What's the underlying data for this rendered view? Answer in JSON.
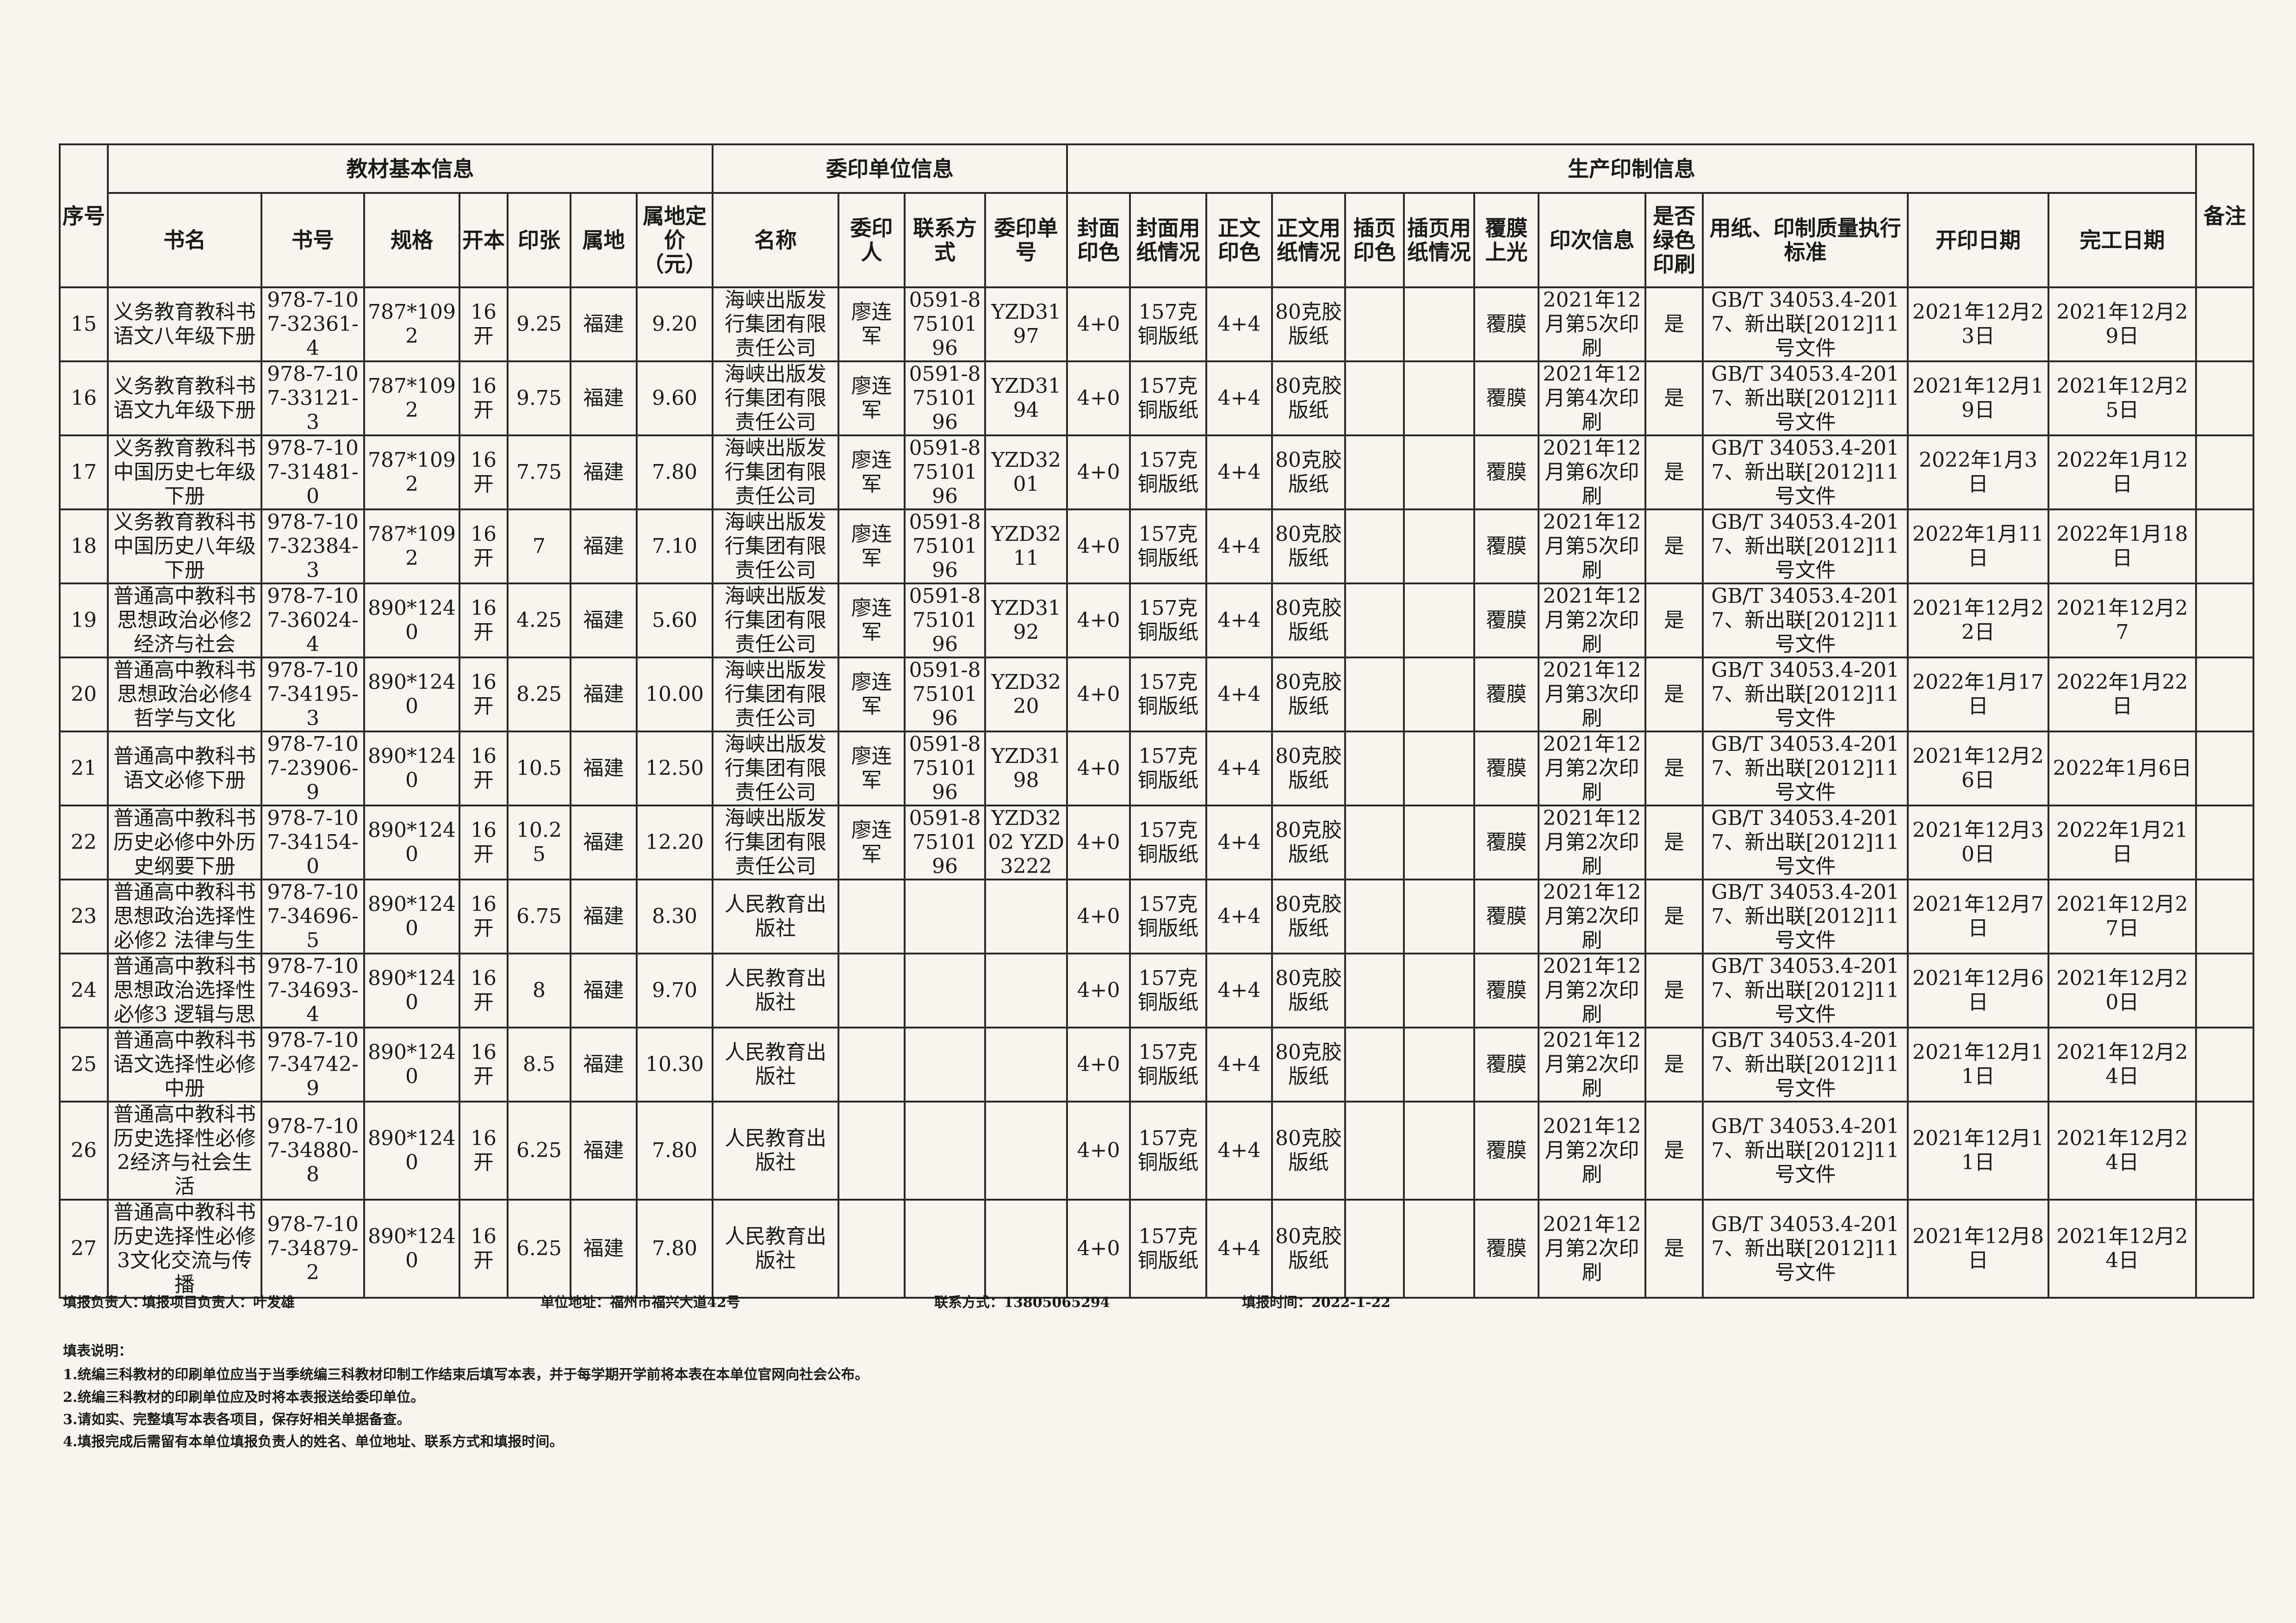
{
  "table": {
    "group_headers": {
      "seq": "序号",
      "basic": "教材基本信息",
      "client": "委印单位信息",
      "production": "生产印制信息",
      "remark": "备注"
    },
    "columns": [
      "书名",
      "书号",
      "规格",
      "开本",
      "印张",
      "属地",
      "属地定价（元）",
      "名称",
      "委印人",
      "联系方式",
      "委印单号",
      "封面印色",
      "封面用纸情况",
      "正文印色",
      "正文用纸情况",
      "插页印色",
      "插页用纸情况",
      "覆膜上光",
      "印次信息",
      "是否绿色印刷",
      "用纸、印制质量执行标准",
      "开印日期",
      "完工日期"
    ],
    "rows": [
      {
        "no": "15",
        "title": "义务教育教科书语文八年级下册",
        "isbn": "978-7-107-32361-4",
        "size": "787*1092",
        "format": "16开",
        "sheets": "9.25",
        "region": "福建",
        "price": "9.20",
        "client": "海峡出版发行集团有限责任公司",
        "contact_person": "廖连军",
        "phone": "0591-87510196",
        "order": "YZD3197",
        "cover_color": "4+0",
        "cover_paper": "157克铜版纸",
        "text_color": "4+4",
        "text_paper": "80克胶版纸",
        "insert_color": "",
        "insert_paper": "",
        "lamination": "覆膜",
        "impression": "2021年12月第5次印刷",
        "green": "是",
        "standard": "GB/T 34053.4-2017、新出联[2012]11号文件",
        "start": "2021年12月23日",
        "end": "2021年12月29日",
        "remark": ""
      },
      {
        "no": "16",
        "title": "义务教育教科书语文九年级下册",
        "isbn": "978-7-107-33121-3",
        "size": "787*1092",
        "format": "16开",
        "sheets": "9.75",
        "region": "福建",
        "price": "9.60",
        "client": "海峡出版发行集团有限责任公司",
        "contact_person": "廖连军",
        "phone": "0591-87510196",
        "order": "YZD3194",
        "cover_color": "4+0",
        "cover_paper": "157克铜版纸",
        "text_color": "4+4",
        "text_paper": "80克胶版纸",
        "insert_color": "",
        "insert_paper": "",
        "lamination": "覆膜",
        "impression": "2021年12月第4次印刷",
        "green": "是",
        "standard": "GB/T 34053.4-2017、新出联[2012]11号文件",
        "start": "2021年12月19日",
        "end": "2021年12月25日",
        "remark": ""
      },
      {
        "no": "17",
        "title": "义务教育教科书中国历史七年级下册",
        "isbn": "978-7-107-31481-0",
        "size": "787*1092",
        "format": "16开",
        "sheets": "7.75",
        "region": "福建",
        "price": "7.80",
        "client": "海峡出版发行集团有限责任公司",
        "contact_person": "廖连军",
        "phone": "0591-87510196",
        "order": "YZD3201",
        "cover_color": "4+0",
        "cover_paper": "157克铜版纸",
        "text_color": "4+4",
        "text_paper": "80克胶版纸",
        "insert_color": "",
        "insert_paper": "",
        "lamination": "覆膜",
        "impression": "2021年12月第6次印刷",
        "green": "是",
        "standard": "GB/T 34053.4-2017、新出联[2012]11号文件",
        "start": "2022年1月3日",
        "end": "2022年1月12日",
        "remark": ""
      },
      {
        "no": "18",
        "title": "义务教育教科书中国历史八年级下册",
        "isbn": "978-7-107-32384-3",
        "size": "787*1092",
        "format": "16开",
        "sheets": "7",
        "region": "福建",
        "price": "7.10",
        "client": "海峡出版发行集团有限责任公司",
        "contact_person": "廖连军",
        "phone": "0591-87510196",
        "order": "YZD3211",
        "cover_color": "4+0",
        "cover_paper": "157克铜版纸",
        "text_color": "4+4",
        "text_paper": "80克胶版纸",
        "insert_color": "",
        "insert_paper": "",
        "lamination": "覆膜",
        "impression": "2021年12月第5次印刷",
        "green": "是",
        "standard": "GB/T 34053.4-2017、新出联[2012]11号文件",
        "start": "2022年1月11日",
        "end": "2022年1月18日",
        "remark": ""
      },
      {
        "no": "19",
        "title": "普通高中教科书思想政治必修2经济与社会",
        "isbn": "978-7-107-36024-4",
        "size": "890*1240",
        "format": "16开",
        "sheets": "4.25",
        "region": "福建",
        "price": "5.60",
        "client": "海峡出版发行集团有限责任公司",
        "contact_person": "廖连军",
        "phone": "0591-87510196",
        "order": "YZD3192",
        "cover_color": "4+0",
        "cover_paper": "157克铜版纸",
        "text_color": "4+4",
        "text_paper": "80克胶版纸",
        "insert_color": "",
        "insert_paper": "",
        "lamination": "覆膜",
        "impression": "2021年12月第2次印刷",
        "green": "是",
        "standard": "GB/T 34053.4-2017、新出联[2012]11号文件",
        "start": "2021年12月22日",
        "end": "2021年12月27",
        "remark": ""
      },
      {
        "no": "20",
        "title": "普通高中教科书思想政治必修4哲学与文化",
        "isbn": "978-7-107-34195-3",
        "size": "890*1240",
        "format": "16开",
        "sheets": "8.25",
        "region": "福建",
        "price": "10.00",
        "client": "海峡出版发行集团有限责任公司",
        "contact_person": "廖连军",
        "phone": "0591-87510196",
        "order": "YZD3220",
        "cover_color": "4+0",
        "cover_paper": "157克铜版纸",
        "text_color": "4+4",
        "text_paper": "80克胶版纸",
        "insert_color": "",
        "insert_paper": "",
        "lamination": "覆膜",
        "impression": "2021年12月第3次印刷",
        "green": "是",
        "standard": "GB/T 34053.4-2017、新出联[2012]11号文件",
        "start": "2022年1月17日",
        "end": "2022年1月22日",
        "remark": ""
      },
      {
        "no": "21",
        "title": "普通高中教科书语文必修下册",
        "isbn": "978-7-107-23906-9",
        "size": "890*1240",
        "format": "16开",
        "sheets": "10.5",
        "region": "福建",
        "price": "12.50",
        "client": "海峡出版发行集团有限责任公司",
        "contact_person": "廖连军",
        "phone": "0591-87510196",
        "order": "YZD3198",
        "cover_color": "4+0",
        "cover_paper": "157克铜版纸",
        "text_color": "4+4",
        "text_paper": "80克胶版纸",
        "insert_color": "",
        "insert_paper": "",
        "lamination": "覆膜",
        "impression": "2021年12月第2次印刷",
        "green": "是",
        "standard": "GB/T 34053.4-2017、新出联[2012]11号文件",
        "start": "2021年12月26日",
        "end": "2022年1月6日",
        "remark": ""
      },
      {
        "no": "22",
        "title": "普通高中教科书历史必修中外历史纲要下册",
        "isbn": "978-7-107-34154-0",
        "size": "890*1240",
        "format": "16开",
        "sheets": "10.25",
        "region": "福建",
        "price": "12.20",
        "client": "海峡出版发行集团有限责任公司",
        "contact_person": "廖连军",
        "phone": "0591-87510196",
        "order": "YZD3202 YZD3222",
        "cover_color": "4+0",
        "cover_paper": "157克铜版纸",
        "text_color": "4+4",
        "text_paper": "80克胶版纸",
        "insert_color": "",
        "insert_paper": "",
        "lamination": "覆膜",
        "impression": "2021年12月第2次印刷",
        "green": "是",
        "standard": "GB/T 34053.4-2017、新出联[2012]11号文件",
        "start": "2021年12月30日",
        "end": "2022年1月21日",
        "remark": ""
      },
      {
        "no": "23",
        "title": "普通高中教科书思想政治选择性必修2 法律与生",
        "isbn": "978-7-107-34696-5",
        "size": "890*1240",
        "format": "16开",
        "sheets": "6.75",
        "region": "福建",
        "price": "8.30",
        "client": "人民教育出版社",
        "contact_person": "",
        "phone": "",
        "order": "",
        "cover_color": "4+0",
        "cover_paper": "157克铜版纸",
        "text_color": "4+4",
        "text_paper": "80克胶版纸",
        "insert_color": "",
        "insert_paper": "",
        "lamination": "覆膜",
        "impression": "2021年12月第2次印刷",
        "green": "是",
        "standard": "GB/T 34053.4-2017、新出联[2012]11号文件",
        "start": "2021年12月7日",
        "end": "2021年12月27日",
        "remark": ""
      },
      {
        "no": "24",
        "title": "普通高中教科书思想政治选择性必修3 逻辑与思",
        "isbn": "978-7-107-34693-4",
        "size": "890*1240",
        "format": "16开",
        "sheets": "8",
        "region": "福建",
        "price": "9.70",
        "client": "人民教育出版社",
        "contact_person": "",
        "phone": "",
        "order": "",
        "cover_color": "4+0",
        "cover_paper": "157克铜版纸",
        "text_color": "4+4",
        "text_paper": "80克胶版纸",
        "insert_color": "",
        "insert_paper": "",
        "lamination": "覆膜",
        "impression": "2021年12月第2次印刷",
        "green": "是",
        "standard": "GB/T 34053.4-2017、新出联[2012]11号文件",
        "start": "2021年12月6日",
        "end": "2021年12月20日",
        "remark": ""
      },
      {
        "no": "25",
        "title": "普通高中教科书语文选择性必修中册",
        "isbn": "978-7-107-34742-9",
        "size": "890*1240",
        "format": "16开",
        "sheets": "8.5",
        "region": "福建",
        "price": "10.30",
        "client": "人民教育出版社",
        "contact_person": "",
        "phone": "",
        "order": "",
        "cover_color": "4+0",
        "cover_paper": "157克铜版纸",
        "text_color": "4+4",
        "text_paper": "80克胶版纸",
        "insert_color": "",
        "insert_paper": "",
        "lamination": "覆膜",
        "impression": "2021年12月第2次印刷",
        "green": "是",
        "standard": "GB/T 34053.4-2017、新出联[2012]11号文件",
        "start": "2021年12月11日",
        "end": "2021年12月24日",
        "remark": ""
      },
      {
        "no": "26",
        "title": "普通高中教科书历史选择性必修2经济与社会生活",
        "isbn": "978-7-107-34880-8",
        "size": "890*1240",
        "format": "16开",
        "sheets": "6.25",
        "region": "福建",
        "price": "7.80",
        "client": "人民教育出版社",
        "contact_person": "",
        "phone": "",
        "order": "",
        "cover_color": "4+0",
        "cover_paper": "157克铜版纸",
        "text_color": "4+4",
        "text_paper": "80克胶版纸",
        "insert_color": "",
        "insert_paper": "",
        "lamination": "覆膜",
        "impression": "2021年12月第2次印刷",
        "green": "是",
        "standard": "GB/T 34053.4-2017、新出联[2012]11号文件",
        "start": "2021年12月11日",
        "end": "2021年12月24日",
        "remark": ""
      },
      {
        "no": "27",
        "title": "普通高中教科书历史选择性必修3文化交流与传播",
        "isbn": "978-7-107-34879-2",
        "size": "890*1240",
        "format": "16开",
        "sheets": "6.25",
        "region": "福建",
        "price": "7.80",
        "client": "人民教育出版社",
        "contact_person": "",
        "phone": "",
        "order": "",
        "cover_color": "4+0",
        "cover_paper": "157克铜版纸",
        "text_color": "4+4",
        "text_paper": "80克胶版纸",
        "insert_color": "",
        "insert_paper": "",
        "lamination": "覆膜",
        "impression": "2021年12月第2次印刷",
        "green": "是",
        "standard": "GB/T 34053.4-2017、新出联[2012]11号文件",
        "start": "2021年12月8日",
        "end": "2021年12月24日",
        "remark": ""
      }
    ]
  },
  "footer": {
    "reporter": "填报负责人：",
    "project_lead": "填报项目负责人：叶发雄",
    "address": "单位地址：福州市福兴大道42号",
    "contact": "联系方式：13805065294",
    "report_time": "填报时间：2022-1-22"
  },
  "notes": {
    "title": "填表说明：",
    "items": [
      "1.统编三科教材的印刷单位应当于当季统编三科教材印制工作结束后填写本表，并于每学期开学前将本表在本单位官网向社会公布。",
      "2.统编三科教材的印刷单位应及时将本表报送给委印单位。",
      "3.请如实、完整填写本表各项目，保存好相关单据备查。",
      "4.填报完成后需留有本单位填报负责人的姓名、单位地址、联系方式和填报时间。"
    ]
  }
}
